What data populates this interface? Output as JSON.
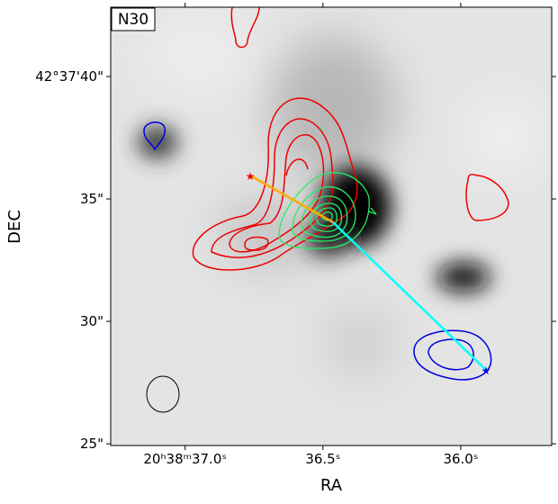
{
  "chart_data": {
    "type": "image",
    "label": "N30",
    "xlabel": "RA",
    "ylabel": "DEC",
    "xlim": [
      37.27,
      35.67
    ],
    "ylim": [
      24.93,
      42.83
    ],
    "xticks": [
      {
        "value": 37.0,
        "label": "20ʰ38ᵐ37.0ˢ"
      },
      {
        "value": 36.5,
        "label": "36.5ˢ"
      },
      {
        "value": 36.0,
        "label": "36.0ˢ"
      }
    ],
    "yticks": [
      {
        "value": 40,
        "label": "42°37'40\""
      },
      {
        "value": 35,
        "label": "35\""
      },
      {
        "value": 30,
        "label": "30\""
      },
      {
        "value": 25,
        "label": "25\""
      }
    ]
  }
}
